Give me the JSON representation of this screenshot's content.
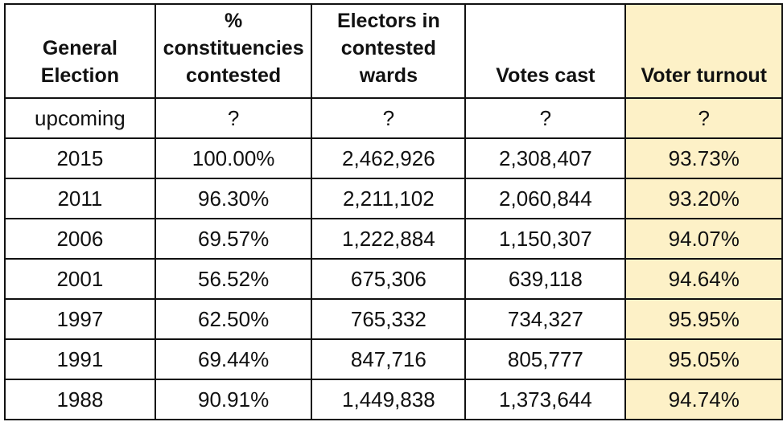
{
  "chart_data": {
    "type": "table",
    "columns": [
      "General Election",
      "% constituencies contested",
      "Electors in contested wards",
      "Votes cast",
      "Voter turnout"
    ],
    "rows": [
      [
        "upcoming",
        "?",
        "?",
        "?",
        "?"
      ],
      [
        "2015",
        "100.00%",
        "2,462,926",
        "2,308,407",
        "93.73%"
      ],
      [
        "2011",
        "96.30%",
        "2,211,102",
        "2,060,844",
        "93.20%"
      ],
      [
        "2006",
        "69.57%",
        "1,222,884",
        "1,150,307",
        "94.07%"
      ],
      [
        "2001",
        "56.52%",
        "675,306",
        "639,118",
        "94.64%"
      ],
      [
        "1997",
        "62.50%",
        "765,332",
        "734,327",
        "95.95%"
      ],
      [
        "1991",
        "69.44%",
        "847,716",
        "805,777",
        "95.05%"
      ],
      [
        "1988",
        "90.91%",
        "1,449,838",
        "1,373,644",
        "94.74%"
      ]
    ],
    "highlight_column": "Voter turnout",
    "highlight_color": "#fdf1c7",
    "border_color": "#111111"
  }
}
